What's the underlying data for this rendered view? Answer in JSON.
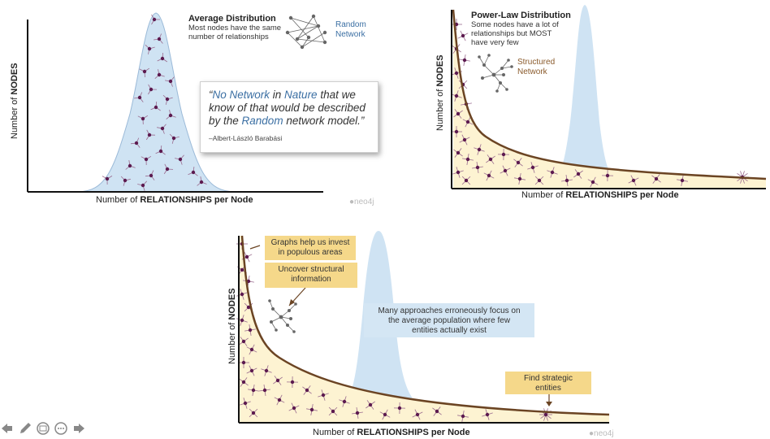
{
  "panel1": {
    "title": "Average Distribution",
    "subtitle_line1": "Most nodes have the same",
    "subtitle_line2": "number of relationships",
    "network_label_line1": "Random",
    "network_label_line2": "Network",
    "y_label_plain": "Number of ",
    "y_label_bold": "NODES",
    "x_label_plain": "Number of ",
    "x_label_bold": "RELATIONSHIPS per Node",
    "watermark": "neo4j"
  },
  "quote": {
    "open": "“",
    "w1": "No Network",
    "w2": " in ",
    "w3": "Nature",
    "w4": " that we know of that would be described by the ",
    "w5": "Random",
    "w6": " network model.”",
    "author": "–Albert-László Barabási"
  },
  "panel2": {
    "title": "Power-Law Distribution",
    "subtitle_line1": "Some nodes have a lot of",
    "subtitle_line2": "relationships but MOST",
    "subtitle_line3": "have very few",
    "network_label_line1": "Structured",
    "network_label_line2": "Network",
    "y_label_plain": "Number of ",
    "y_label_bold": "NODES",
    "x_label_plain": "Number of ",
    "x_label_bold": "RELATIONSHIPS per Node"
  },
  "panel3": {
    "callout_invest_line1": "Graphs help us invest",
    "callout_invest_line2": "in populous areas",
    "callout_uncover_line1": "Uncover structural",
    "callout_uncover_line2": "information",
    "average_note_line1": "Many approaches erroneously focus on",
    "average_note_line2": "the average population where few",
    "average_note_line3": "entities actually exist",
    "callout_strategic_line1": "Find strategic",
    "callout_strategic_line2": "entities",
    "y_label_plain": "Number of ",
    "y_label_bold": "NODES",
    "x_label_plain": "Number of ",
    "x_label_bold": "RELATIONSHIPS per Node",
    "watermark": "neo4j"
  },
  "toolbar": {
    "icons": [
      "back-arrow-icon",
      "pen-icon",
      "slides-icon",
      "more-icon",
      "forward-arrow-icon"
    ]
  },
  "colors": {
    "bell_fill": "#cfe3f3",
    "bell_stroke": "#9bbad8",
    "curve": "#6b4423",
    "curve_fill": "#fdf3d2",
    "node": "#5c1a4f",
    "callout": "#f5d88a",
    "blue_note": "#d4e6f4",
    "accent_blue": "#3b6fa3",
    "accent_brown": "#8a5a2b"
  }
}
